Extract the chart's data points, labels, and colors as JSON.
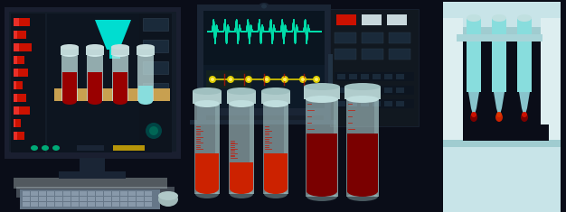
{
  "bg_color": "#0a0d18",
  "screen_bg": "#0d1520",
  "screen_dark": "#0a1018",
  "cyan": "#00ddd0",
  "cyan_light": "#88dddd",
  "cyan_pale": "#b8e8e8",
  "red_bright": "#cc1100",
  "blood_dark": "#7a0000",
  "blood_mid": "#990000",
  "blood_light": "#cc2200",
  "rack_beige": "#c8a050",
  "monitor_body": "#1a1f30",
  "monitor_border": "#252a3a",
  "stand_color": "#1a2535",
  "kbd_base": "#8899aa",
  "kbd_key": "#99aabd",
  "kbd_mat": "#c8d8e0",
  "white_device": "#c8e4e8",
  "white_light": "#ddeef0",
  "device_dark": "#111820",
  "device_mid": "#1a2535",
  "device_gray": "#334455",
  "yellow_line": "#ddcc00",
  "wave_cyan": "#00ddaa",
  "laptop_body": "#1a2535",
  "control_body": "#111820",
  "tube_glass": "#c0dede",
  "tube_glass2": "#a8cccc",
  "figsize": [
    6.26,
    2.35
  ],
  "dpi": 100
}
